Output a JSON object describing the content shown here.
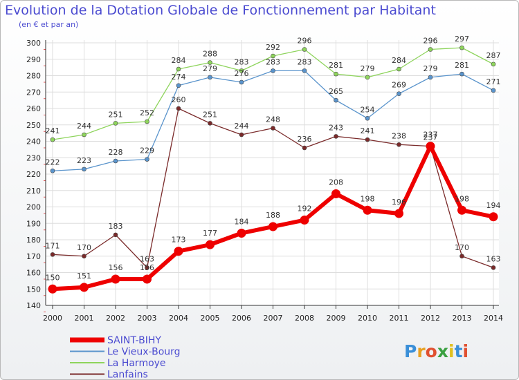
{
  "chart_data": {
    "type": "line",
    "title": "Evolution de la Dotation Globale de Fonctionnement par Habitant",
    "subtitle": "(en € et par an)",
    "x": [
      "2000",
      "2001",
      "2002",
      "2003",
      "2004",
      "2005",
      "2006",
      "2007",
      "2008",
      "2009",
      "2010",
      "2011",
      "2012",
      "2013",
      "2014"
    ],
    "ylim": [
      140,
      300
    ],
    "yticks": [
      140,
      150,
      160,
      170,
      180,
      190,
      200,
      210,
      220,
      230,
      240,
      250,
      260,
      270,
      280,
      290,
      300
    ],
    "grid": true,
    "series": [
      {
        "name": "La Harmoye",
        "color": "#8ed45c",
        "values": [
          241,
          244,
          251,
          252,
          284,
          288,
          283,
          292,
          296,
          281,
          279,
          284,
          296,
          297,
          287
        ]
      },
      {
        "name": "Le Vieux-Bourg",
        "color": "#5a94cc",
        "values": [
          222,
          223,
          228,
          229,
          274,
          279,
          276,
          283,
          283,
          265,
          254,
          269,
          279,
          281,
          271
        ]
      },
      {
        "name": "Lanfains",
        "color": "#7a2a2a",
        "values": [
          171,
          170,
          183,
          163,
          260,
          251,
          244,
          248,
          236,
          243,
          241,
          238,
          237,
          170,
          163
        ]
      },
      {
        "name": "SAINT-BIHY",
        "color": "#ee0000",
        "values": [
          150,
          151,
          156,
          156,
          173,
          177,
          184,
          188,
          192,
          208,
          198,
          196,
          237,
          198,
          194
        ]
      }
    ],
    "legend": [
      "SAINT-BIHY",
      "Le Vieux-Bourg",
      "La Harmoye",
      "Lanfains"
    ],
    "watermark": "Proxiti"
  }
}
